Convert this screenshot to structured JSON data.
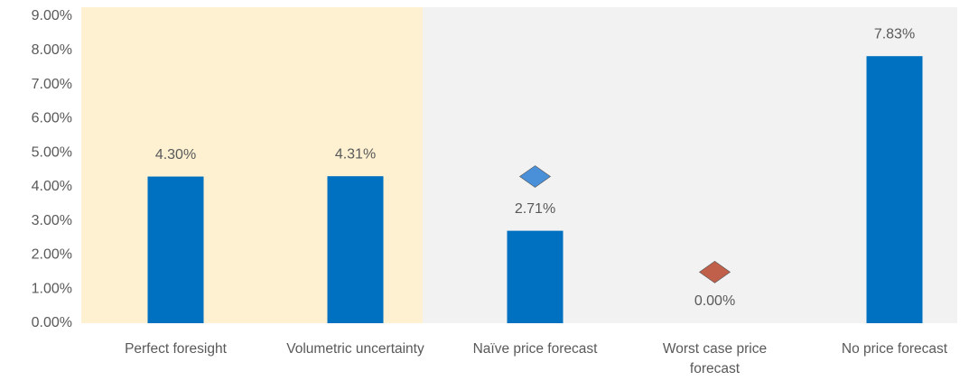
{
  "chart_data": {
    "type": "bar",
    "categories": [
      "Perfect foresight",
      "Volumetric uncertainty",
      "Naïve price forecast",
      "Worst case price forecast",
      "No price forecast"
    ],
    "values": [
      4.3,
      4.31,
      2.71,
      0.0,
      7.83
    ],
    "value_labels": [
      "4.30%",
      "4.31%",
      "2.71%",
      "0.00%",
      "7.83%"
    ],
    "color": "#0070c0",
    "markers": {
      "values": [
        null,
        null,
        4.3,
        1.5,
        null
      ],
      "colors": [
        null,
        null,
        "#4a90d9",
        "#c0604a"
      ]
    },
    "highlight_color": "#fdf1d2",
    "plot_background": "#f2f2f2",
    "ylim": [
      0,
      9
    ],
    "yticks": [
      {
        "value": 0,
        "label": "0.00%"
      },
      {
        "value": 1,
        "label": "1.00%"
      },
      {
        "value": 2,
        "label": "2.00%"
      },
      {
        "value": 3,
        "label": "3.00%"
      },
      {
        "value": 4,
        "label": "4.00%"
      },
      {
        "value": 5,
        "label": "5.00%"
      },
      {
        "value": 6,
        "label": "6.00%"
      },
      {
        "value": 7,
        "label": "7.00%"
      },
      {
        "value": 8,
        "label": "8.00%"
      },
      {
        "value": 9,
        "label": "9.00%"
      }
    ],
    "grid": false
  }
}
